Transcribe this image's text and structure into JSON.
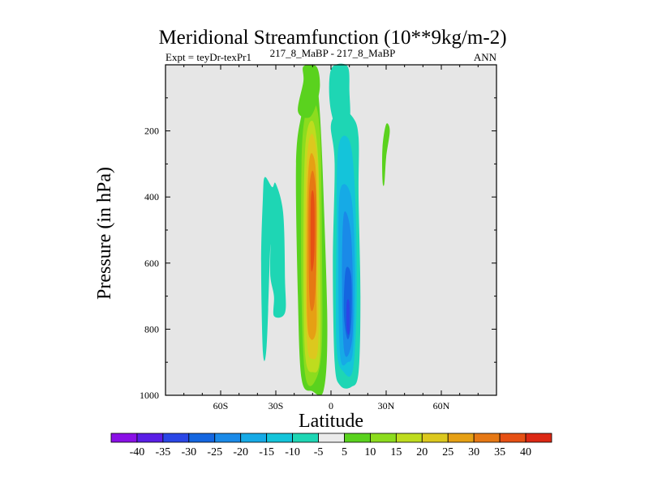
{
  "chart_data": {
    "type": "heatmap",
    "title": "Meridional Streamfunction (10**9kg/m-2)",
    "subtitle_left": "Expt = teyDr-texPr1",
    "subtitle_center": "217_8_MaBP - 217_8_MaBP",
    "subtitle_right": "ANN",
    "xlabel": "Latitude",
    "ylabel": "Pressure (in hPa)",
    "xlim": [
      -90,
      90
    ],
    "ylim": [
      0,
      1000
    ],
    "y_inverted": true,
    "x_ticks": [
      {
        "value": -60,
        "label": "60S"
      },
      {
        "value": -30,
        "label": "30S"
      },
      {
        "value": 0,
        "label": "0"
      },
      {
        "value": 30,
        "label": "30N"
      },
      {
        "value": 60,
        "label": "60N"
      }
    ],
    "y_ticks": [
      {
        "value": 200,
        "label": "200"
      },
      {
        "value": 400,
        "label": "400"
      },
      {
        "value": 600,
        "label": "600"
      },
      {
        "value": 800,
        "label": "800"
      },
      {
        "value": 1000,
        "label": "1000"
      }
    ],
    "background_color": "#e6e6e6",
    "colorbar": {
      "levels": [
        -40,
        -35,
        -30,
        -25,
        -20,
        -15,
        -10,
        -5,
        5,
        10,
        15,
        20,
        25,
        30,
        35,
        40
      ],
      "labels": [
        "-40",
        "-35",
        "-30",
        "-25",
        "-20",
        "-15",
        "-10",
        "-5",
        "5",
        "10",
        "15",
        "20",
        "25",
        "30",
        "35",
        "40"
      ],
      "colors": [
        "#8a10e6",
        "#5a1ee6",
        "#2a46e6",
        "#1466e0",
        "#1a8ae8",
        "#16aae6",
        "#14c4da",
        "#1ed6b4",
        "#ebebeb",
        "#5ad21e",
        "#8cdc1e",
        "#bedc1e",
        "#dcc81e",
        "#e6a014",
        "#e67814",
        "#e65014",
        "#dc2814"
      ]
    },
    "regions": [
      {
        "name": "west-cell-outer",
        "level": 5,
        "points": [
          [
            -12,
            20
          ],
          [
            -8,
            50
          ],
          [
            -6,
            150
          ],
          [
            -4,
            400
          ],
          [
            -2,
            800
          ],
          [
            -4,
            985
          ],
          [
            -10,
            988
          ],
          [
            -16,
            950
          ],
          [
            -18,
            700
          ],
          [
            -19,
            300
          ],
          [
            -16,
            150
          ],
          [
            -12,
            80
          ]
        ]
      },
      {
        "name": "west-cell-10",
        "level": 10,
        "points": [
          [
            -10,
            100
          ],
          [
            -6,
            200
          ],
          [
            -5,
            500
          ],
          [
            -5,
            850
          ],
          [
            -9,
            960
          ],
          [
            -14,
            940
          ],
          [
            -16,
            700
          ],
          [
            -16,
            300
          ],
          [
            -14,
            150
          ]
        ]
      },
      {
        "name": "west-cell-15",
        "level": 15,
        "points": [
          [
            -10,
            170
          ],
          [
            -7,
            280
          ],
          [
            -6,
            550
          ],
          [
            -6,
            880
          ],
          [
            -10,
            930
          ],
          [
            -14,
            880
          ],
          [
            -15,
            600
          ],
          [
            -14,
            250
          ]
        ]
      },
      {
        "name": "west-cell-20",
        "level": 20,
        "points": [
          [
            -10,
            210
          ],
          [
            -7,
            320
          ],
          [
            -7,
            600
          ],
          [
            -7,
            850
          ],
          [
            -10,
            890
          ],
          [
            -13,
            840
          ],
          [
            -14,
            550
          ],
          [
            -13,
            280
          ]
        ]
      },
      {
        "name": "west-cell-25",
        "level": 25,
        "points": [
          [
            -10,
            270
          ],
          [
            -8,
            350
          ],
          [
            -8,
            650
          ],
          [
            -8,
            800
          ],
          [
            -11,
            830
          ],
          [
            -13,
            760
          ],
          [
            -13,
            450
          ],
          [
            -12,
            300
          ]
        ]
      },
      {
        "name": "west-cell-30",
        "level": 30,
        "points": [
          [
            -10,
            320
          ],
          [
            -8,
            400
          ],
          [
            -8,
            600
          ],
          [
            -9,
            720
          ],
          [
            -11,
            740
          ],
          [
            -12,
            650
          ],
          [
            -12,
            400
          ]
        ]
      },
      {
        "name": "west-cell-35",
        "level": 35,
        "points": [
          [
            -10,
            380
          ],
          [
            -9,
            420
          ],
          [
            -9,
            560
          ],
          [
            -10,
            620
          ],
          [
            -11,
            600
          ],
          [
            -11,
            420
          ]
        ]
      },
      {
        "name": "east-cell-outer",
        "level": -5,
        "points": [
          [
            0,
            180
          ],
          [
            2,
            300
          ],
          [
            1,
            600
          ],
          [
            2,
            900
          ],
          [
            5,
            970
          ],
          [
            11,
            975
          ],
          [
            15,
            930
          ],
          [
            16,
            700
          ],
          [
            15,
            400
          ],
          [
            15,
            220
          ],
          [
            12,
            160
          ],
          [
            6,
            140
          ]
        ]
      },
      {
        "name": "east-cell-10",
        "level": -10,
        "points": [
          [
            4,
            250
          ],
          [
            3,
            500
          ],
          [
            3,
            850
          ],
          [
            7,
            930
          ],
          [
            12,
            920
          ],
          [
            14,
            700
          ],
          [
            13,
            380
          ],
          [
            10,
            230
          ]
        ]
      },
      {
        "name": "east-cell-15",
        "level": -15,
        "points": [
          [
            5,
            380
          ],
          [
            4,
            600
          ],
          [
            5,
            880
          ],
          [
            9,
            900
          ],
          [
            12,
            860
          ],
          [
            13,
            620
          ],
          [
            11,
            400
          ]
        ]
      },
      {
        "name": "east-cell-20",
        "level": -20,
        "points": [
          [
            7,
            450
          ],
          [
            6,
            650
          ],
          [
            7,
            860
          ],
          [
            10,
            870
          ],
          [
            12,
            780
          ],
          [
            11,
            520
          ]
        ]
      },
      {
        "name": "east-cell-25",
        "level": -25,
        "points": [
          [
            8,
            620
          ],
          [
            7,
            750
          ],
          [
            9,
            830
          ],
          [
            11,
            780
          ],
          [
            11,
            640
          ]
        ]
      },
      {
        "name": "east-cell-30",
        "level": -30,
        "points": [
          [
            8.5,
            720
          ],
          [
            8.5,
            800
          ],
          [
            10,
            810
          ],
          [
            10,
            720
          ]
        ]
      },
      {
        "name": "upper-green-left",
        "level": 5,
        "points": [
          [
            -15,
            5
          ],
          [
            -8,
            5
          ],
          [
            -6,
            60
          ],
          [
            -8,
            120
          ],
          [
            -12,
            160
          ],
          [
            -18,
            140
          ],
          [
            -15,
            50
          ]
        ]
      },
      {
        "name": "upper-cyan-center",
        "level": -5,
        "points": [
          [
            1,
            5
          ],
          [
            9,
            5
          ],
          [
            10,
            80
          ],
          [
            10,
            170
          ],
          [
            4,
            200
          ],
          [
            0,
            140
          ],
          [
            -1,
            60
          ]
        ]
      },
      {
        "name": "left-cyan-band",
        "level": -5,
        "points": [
          [
            -36,
            340
          ],
          [
            -32,
            370
          ],
          [
            -30,
            360
          ],
          [
            -26,
            450
          ],
          [
            -25,
            650
          ],
          [
            -25,
            750
          ],
          [
            -31,
            760
          ],
          [
            -31,
            700
          ],
          [
            -33,
            640
          ],
          [
            -33,
            550
          ],
          [
            -35,
            850
          ],
          [
            -37,
            870
          ],
          [
            -38,
            600
          ],
          [
            -37,
            400
          ]
        ]
      },
      {
        "name": "right-green-patch",
        "level": 5,
        "points": [
          [
            30,
            180
          ],
          [
            32,
            200
          ],
          [
            30,
            280
          ],
          [
            29,
            360
          ],
          [
            28,
            350
          ],
          [
            28,
            250
          ]
        ]
      }
    ]
  }
}
